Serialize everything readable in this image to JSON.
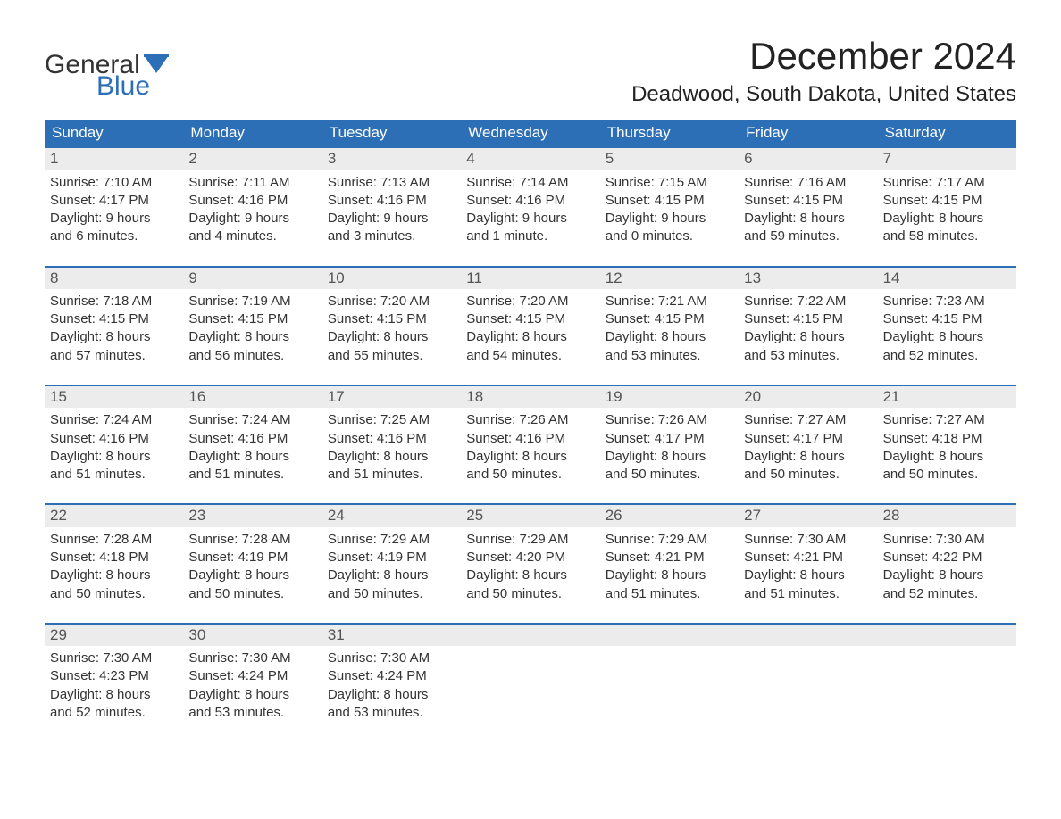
{
  "logo": {
    "text_general": "General",
    "text_blue": "Blue",
    "flag_color": "#2d6fb6"
  },
  "title": "December 2024",
  "location": "Deadwood, South Dakota, United States",
  "colors": {
    "header_bg": "#2d6fb6",
    "header_text": "#ffffff",
    "daynum_bg": "#ececec",
    "daynum_text": "#555555",
    "body_text": "#333333",
    "week_divider": "#2d6fb6",
    "page_bg": "#ffffff"
  },
  "weekdays": [
    "Sunday",
    "Monday",
    "Tuesday",
    "Wednesday",
    "Thursday",
    "Friday",
    "Saturday"
  ],
  "weeks": [
    [
      {
        "n": "1",
        "sunrise": "Sunrise: 7:10 AM",
        "sunset": "Sunset: 4:17 PM",
        "d1": "Daylight: 9 hours",
        "d2": "and 6 minutes."
      },
      {
        "n": "2",
        "sunrise": "Sunrise: 7:11 AM",
        "sunset": "Sunset: 4:16 PM",
        "d1": "Daylight: 9 hours",
        "d2": "and 4 minutes."
      },
      {
        "n": "3",
        "sunrise": "Sunrise: 7:13 AM",
        "sunset": "Sunset: 4:16 PM",
        "d1": "Daylight: 9 hours",
        "d2": "and 3 minutes."
      },
      {
        "n": "4",
        "sunrise": "Sunrise: 7:14 AM",
        "sunset": "Sunset: 4:16 PM",
        "d1": "Daylight: 9 hours",
        "d2": "and 1 minute."
      },
      {
        "n": "5",
        "sunrise": "Sunrise: 7:15 AM",
        "sunset": "Sunset: 4:15 PM",
        "d1": "Daylight: 9 hours",
        "d2": "and 0 minutes."
      },
      {
        "n": "6",
        "sunrise": "Sunrise: 7:16 AM",
        "sunset": "Sunset: 4:15 PM",
        "d1": "Daylight: 8 hours",
        "d2": "and 59 minutes."
      },
      {
        "n": "7",
        "sunrise": "Sunrise: 7:17 AM",
        "sunset": "Sunset: 4:15 PM",
        "d1": "Daylight: 8 hours",
        "d2": "and 58 minutes."
      }
    ],
    [
      {
        "n": "8",
        "sunrise": "Sunrise: 7:18 AM",
        "sunset": "Sunset: 4:15 PM",
        "d1": "Daylight: 8 hours",
        "d2": "and 57 minutes."
      },
      {
        "n": "9",
        "sunrise": "Sunrise: 7:19 AM",
        "sunset": "Sunset: 4:15 PM",
        "d1": "Daylight: 8 hours",
        "d2": "and 56 minutes."
      },
      {
        "n": "10",
        "sunrise": "Sunrise: 7:20 AM",
        "sunset": "Sunset: 4:15 PM",
        "d1": "Daylight: 8 hours",
        "d2": "and 55 minutes."
      },
      {
        "n": "11",
        "sunrise": "Sunrise: 7:20 AM",
        "sunset": "Sunset: 4:15 PM",
        "d1": "Daylight: 8 hours",
        "d2": "and 54 minutes."
      },
      {
        "n": "12",
        "sunrise": "Sunrise: 7:21 AM",
        "sunset": "Sunset: 4:15 PM",
        "d1": "Daylight: 8 hours",
        "d2": "and 53 minutes."
      },
      {
        "n": "13",
        "sunrise": "Sunrise: 7:22 AM",
        "sunset": "Sunset: 4:15 PM",
        "d1": "Daylight: 8 hours",
        "d2": "and 53 minutes."
      },
      {
        "n": "14",
        "sunrise": "Sunrise: 7:23 AM",
        "sunset": "Sunset: 4:15 PM",
        "d1": "Daylight: 8 hours",
        "d2": "and 52 minutes."
      }
    ],
    [
      {
        "n": "15",
        "sunrise": "Sunrise: 7:24 AM",
        "sunset": "Sunset: 4:16 PM",
        "d1": "Daylight: 8 hours",
        "d2": "and 51 minutes."
      },
      {
        "n": "16",
        "sunrise": "Sunrise: 7:24 AM",
        "sunset": "Sunset: 4:16 PM",
        "d1": "Daylight: 8 hours",
        "d2": "and 51 minutes."
      },
      {
        "n": "17",
        "sunrise": "Sunrise: 7:25 AM",
        "sunset": "Sunset: 4:16 PM",
        "d1": "Daylight: 8 hours",
        "d2": "and 51 minutes."
      },
      {
        "n": "18",
        "sunrise": "Sunrise: 7:26 AM",
        "sunset": "Sunset: 4:16 PM",
        "d1": "Daylight: 8 hours",
        "d2": "and 50 minutes."
      },
      {
        "n": "19",
        "sunrise": "Sunrise: 7:26 AM",
        "sunset": "Sunset: 4:17 PM",
        "d1": "Daylight: 8 hours",
        "d2": "and 50 minutes."
      },
      {
        "n": "20",
        "sunrise": "Sunrise: 7:27 AM",
        "sunset": "Sunset: 4:17 PM",
        "d1": "Daylight: 8 hours",
        "d2": "and 50 minutes."
      },
      {
        "n": "21",
        "sunrise": "Sunrise: 7:27 AM",
        "sunset": "Sunset: 4:18 PM",
        "d1": "Daylight: 8 hours",
        "d2": "and 50 minutes."
      }
    ],
    [
      {
        "n": "22",
        "sunrise": "Sunrise: 7:28 AM",
        "sunset": "Sunset: 4:18 PM",
        "d1": "Daylight: 8 hours",
        "d2": "and 50 minutes."
      },
      {
        "n": "23",
        "sunrise": "Sunrise: 7:28 AM",
        "sunset": "Sunset: 4:19 PM",
        "d1": "Daylight: 8 hours",
        "d2": "and 50 minutes."
      },
      {
        "n": "24",
        "sunrise": "Sunrise: 7:29 AM",
        "sunset": "Sunset: 4:19 PM",
        "d1": "Daylight: 8 hours",
        "d2": "and 50 minutes."
      },
      {
        "n": "25",
        "sunrise": "Sunrise: 7:29 AM",
        "sunset": "Sunset: 4:20 PM",
        "d1": "Daylight: 8 hours",
        "d2": "and 50 minutes."
      },
      {
        "n": "26",
        "sunrise": "Sunrise: 7:29 AM",
        "sunset": "Sunset: 4:21 PM",
        "d1": "Daylight: 8 hours",
        "d2": "and 51 minutes."
      },
      {
        "n": "27",
        "sunrise": "Sunrise: 7:30 AM",
        "sunset": "Sunset: 4:21 PM",
        "d1": "Daylight: 8 hours",
        "d2": "and 51 minutes."
      },
      {
        "n": "28",
        "sunrise": "Sunrise: 7:30 AM",
        "sunset": "Sunset: 4:22 PM",
        "d1": "Daylight: 8 hours",
        "d2": "and 52 minutes."
      }
    ],
    [
      {
        "n": "29",
        "sunrise": "Sunrise: 7:30 AM",
        "sunset": "Sunset: 4:23 PM",
        "d1": "Daylight: 8 hours",
        "d2": "and 52 minutes."
      },
      {
        "n": "30",
        "sunrise": "Sunrise: 7:30 AM",
        "sunset": "Sunset: 4:24 PM",
        "d1": "Daylight: 8 hours",
        "d2": "and 53 minutes."
      },
      {
        "n": "31",
        "sunrise": "Sunrise: 7:30 AM",
        "sunset": "Sunset: 4:24 PM",
        "d1": "Daylight: 8 hours",
        "d2": "and 53 minutes."
      },
      null,
      null,
      null,
      null
    ]
  ]
}
